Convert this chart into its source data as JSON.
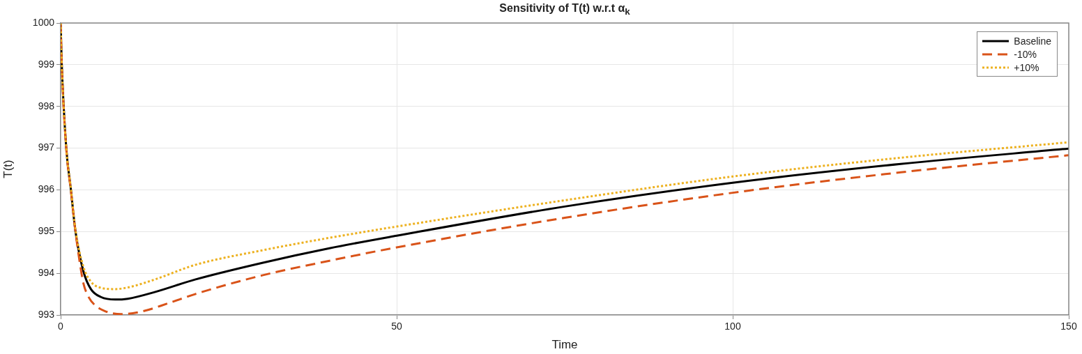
{
  "chart_data": {
    "type": "line",
    "title": "Sensitivity of T(t) w.r.t α$_{k}$",
    "xlabel": "Time",
    "ylabel": "T(t)",
    "xlim": [
      0,
      150
    ],
    "xticks": [
      0,
      50,
      100,
      150
    ],
    "ylim": [
      993,
      1000
    ],
    "yticks": [
      993,
      994,
      995,
      996,
      997,
      998,
      999,
      1000
    ],
    "grid": true,
    "legend": "top right",
    "marker": "none",
    "series": [
      {
        "name": "Baseline",
        "color": "#000000",
        "line_style": "solid",
        "x": [
          0,
          0.14,
          0.83,
          1.52,
          2.2,
          3.4,
          4.5,
          6,
          8.1,
          10,
          14,
          20,
          30,
          40,
          50,
          75,
          100,
          125,
          150
        ],
        "values": [
          1000,
          999.13,
          997.01,
          996.01,
          995.01,
          994.04,
          993.62,
          993.43,
          993.37,
          993.39,
          993.55,
          993.85,
          994.25,
          994.6,
          994.9,
          995.6,
          996.17,
          996.62,
          996.99
        ]
      },
      {
        "name": "-10%",
        "color": "#d95319",
        "line_style": "dashed",
        "x": [
          0,
          0.14,
          0.83,
          1.52,
          2.2,
          2.9,
          3.4,
          4.2,
          5,
          6.5,
          9,
          12,
          16,
          20,
          30,
          40,
          50,
          75,
          100,
          125,
          150
        ],
        "values": [
          1000,
          999.13,
          997.0,
          995.98,
          995.0,
          994.2,
          993.75,
          993.42,
          993.25,
          993.1,
          993.02,
          993.08,
          993.28,
          993.5,
          993.95,
          994.3,
          994.62,
          995.33,
          995.93,
          996.42,
          996.83
        ]
      },
      {
        "name": "+10%",
        "color": "#edb120",
        "line_style": "dotted",
        "x": [
          0,
          0.14,
          0.83,
          1.52,
          2.2,
          3.4,
          4.5,
          6,
          8,
          10,
          14,
          20,
          30,
          40,
          50,
          75,
          100,
          125,
          150
        ],
        "values": [
          1000,
          999.13,
          997.02,
          996.04,
          995.05,
          994.15,
          993.8,
          993.65,
          993.62,
          993.66,
          993.85,
          994.2,
          994.55,
          994.85,
          995.12,
          995.75,
          996.32,
          996.77,
          997.14
        ]
      }
    ]
  }
}
